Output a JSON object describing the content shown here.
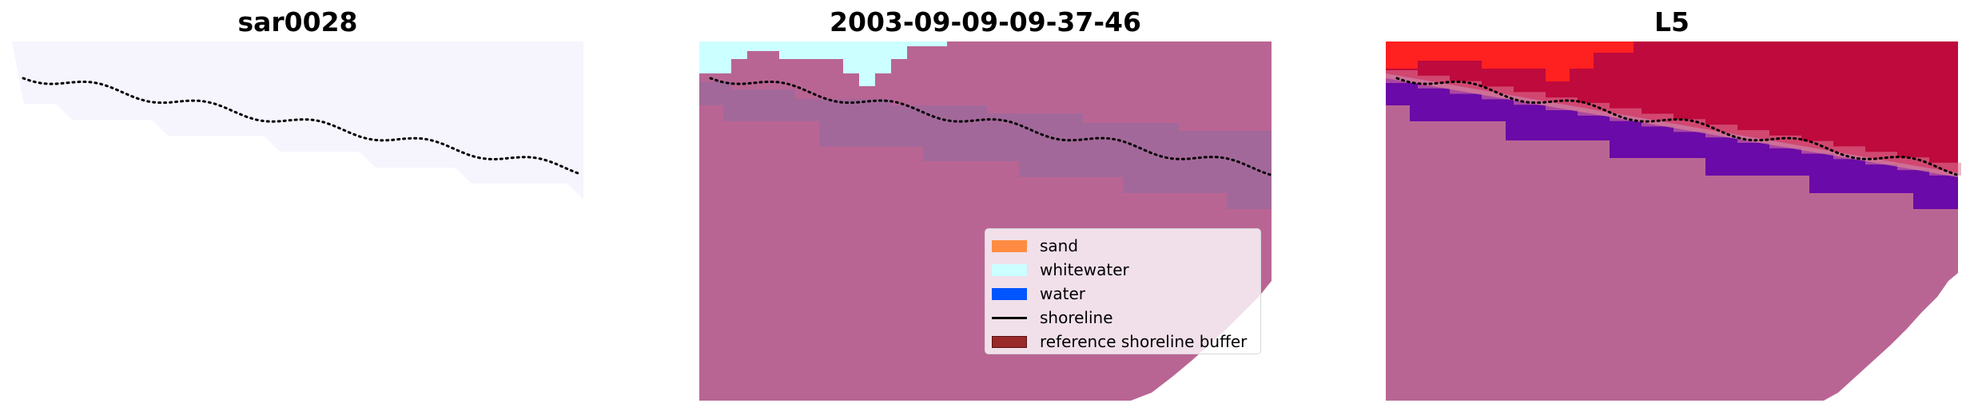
{
  "chart_data": [
    {
      "type": "image",
      "title": "sar0028",
      "shoreline": {
        "style": "dotted",
        "color": "#000000"
      }
    },
    {
      "type": "image",
      "title": "2003-09-09-09-37-46",
      "shoreline": {
        "style": "dotted",
        "color": "#000000"
      },
      "legend": {
        "placement": "lower-right",
        "entries": [
          {
            "label": "sand",
            "color": "#ff8c42",
            "kind": "patch"
          },
          {
            "label": "whitewater",
            "color": "#ccffff",
            "kind": "patch"
          },
          {
            "label": "water",
            "color": "#0055ff",
            "kind": "patch"
          },
          {
            "label": "shoreline",
            "color": "#000000",
            "kind": "line"
          },
          {
            "label": "reference shoreline buffer",
            "color": "#9a2a2a",
            "kind": "patch"
          }
        ]
      }
    },
    {
      "type": "heatmap",
      "title": "L5",
      "shoreline": {
        "style": "dotted",
        "color": "#000000"
      }
    }
  ],
  "colors": {
    "buffer_overlay": "#b96594",
    "buffer_dark": "#a3689a",
    "whitewater": "#ccffff",
    "sar_tint": "#f6f4fd",
    "red": "#ff2020",
    "crimson": "#be0a3c",
    "purple": "#6a0aa8"
  }
}
